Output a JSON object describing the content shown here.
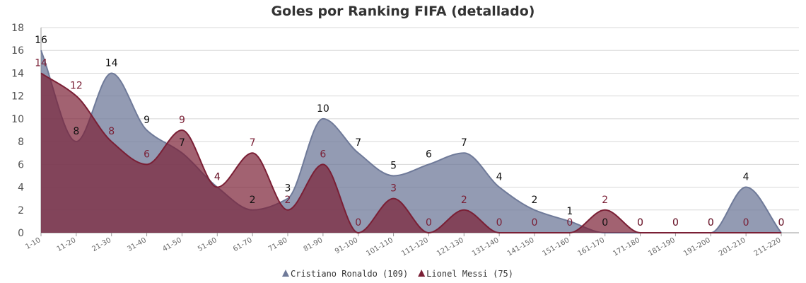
{
  "chart_data": {
    "type": "area",
    "title": "Goles por Ranking FIFA (detallado)",
    "xlabel": "",
    "ylabel": "",
    "ylim": [
      0,
      18
    ],
    "yticks": [
      0,
      2,
      4,
      6,
      8,
      10,
      12,
      14,
      16,
      18
    ],
    "grid": true,
    "legend_position": "bottom",
    "categories": [
      "1-10",
      "11-20",
      "21-30",
      "31-40",
      "41-50",
      "51-60",
      "61-70",
      "71-80",
      "81-90",
      "91-100",
      "101-110",
      "111-120",
      "121-130",
      "131-140",
      "141-150",
      "151-160",
      "161-170",
      "171-180",
      "181-190",
      "191-200",
      "201-210",
      "211-220"
    ],
    "series": [
      {
        "name": "Cristiano Ronaldo (109)",
        "color": "#6f7a99",
        "label_color": "#111111",
        "values": [
          16,
          8,
          14,
          9,
          7,
          4,
          2,
          3,
          10,
          7,
          5,
          6,
          7,
          4,
          2,
          1,
          0,
          0,
          0,
          0,
          4,
          0
        ]
      },
      {
        "name": "Lionel Messi (75)",
        "color": "#7a1f35",
        "label_color": "#7a1f35",
        "values": [
          14,
          12,
          8,
          6,
          9,
          4,
          7,
          2,
          6,
          0,
          3,
          0,
          2,
          0,
          0,
          0,
          2,
          0,
          0,
          0,
          0,
          0
        ]
      }
    ]
  }
}
